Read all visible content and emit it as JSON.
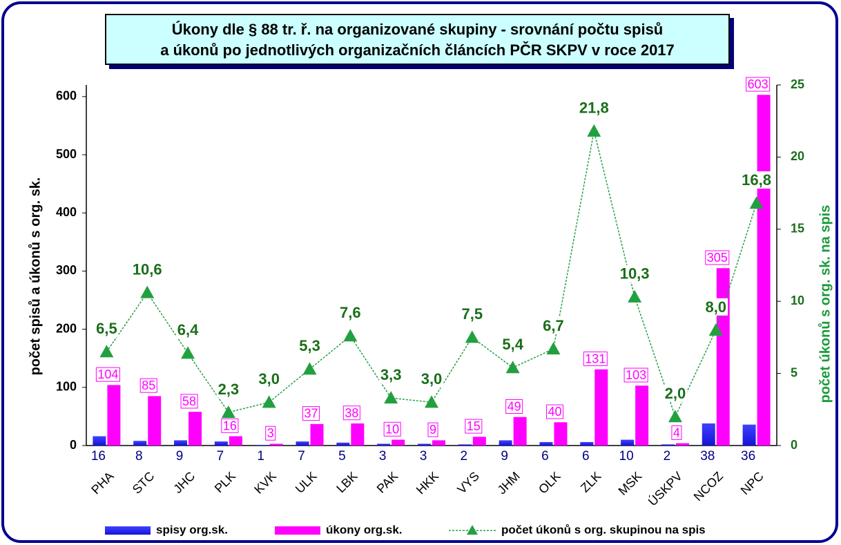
{
  "chart_data": {
    "type": "bar_line",
    "title": "Úkony dle § 88 tr. ř.  na organizované skupiny -  srovnání počtu spisů\na úkonů po jednotlivých organizačních článcích PČR SKPV v roce 2017",
    "y_label": "počet spisů a úkonů s org. sk.",
    "y2_label": "počet úkonů s org. sk. na spis",
    "categories": [
      "PHA",
      "STC",
      "JHC",
      "PLK",
      "KVK",
      "ULK",
      "LBK",
      "PAK",
      "HKK",
      "VYS",
      "JHM",
      "OLK",
      "ZLK",
      "MSK",
      "ÚSKPV",
      "NCOZ",
      "NPC"
    ],
    "series": [
      {
        "name": "spisy org.sk.",
        "color": "#1414d8",
        "type": "bar",
        "values": [
          16,
          8,
          9,
          7,
          1,
          7,
          5,
          3,
          3,
          2,
          9,
          6,
          6,
          10,
          2,
          38,
          36
        ]
      },
      {
        "name": "úkony org.sk.",
        "color": "#ff00ff",
        "type": "bar",
        "values": [
          104,
          85,
          58,
          16,
          3,
          37,
          38,
          10,
          9,
          15,
          49,
          40,
          131,
          103,
          4,
          305,
          603
        ]
      },
      {
        "name": "počet úkonů s org. skupinou na spis",
        "color": "#22a040",
        "type": "line",
        "axis": "y2",
        "values": [
          6.5,
          10.6,
          6.4,
          2.3,
          3.0,
          5.3,
          7.6,
          3.3,
          3.0,
          7.5,
          5.4,
          6.7,
          21.8,
          10.3,
          2.0,
          8.0,
          16.8
        ],
        "value_labels": [
          "6,5",
          "10,6",
          "6,4",
          "2,3",
          "3,0",
          "5,3",
          "7,6",
          "3,3",
          "3,0",
          "7,5",
          "5,4",
          "6,7",
          "21,8",
          "10,3",
          "2,0",
          "8,0",
          "16,8"
        ]
      }
    ],
    "ylim": [
      0,
      620
    ],
    "yticks": [
      0,
      100,
      200,
      300,
      400,
      500,
      600
    ],
    "y2lim": [
      0,
      25
    ],
    "y2ticks": [
      0,
      5,
      10,
      15,
      20,
      25
    ],
    "legend": "bottom"
  }
}
